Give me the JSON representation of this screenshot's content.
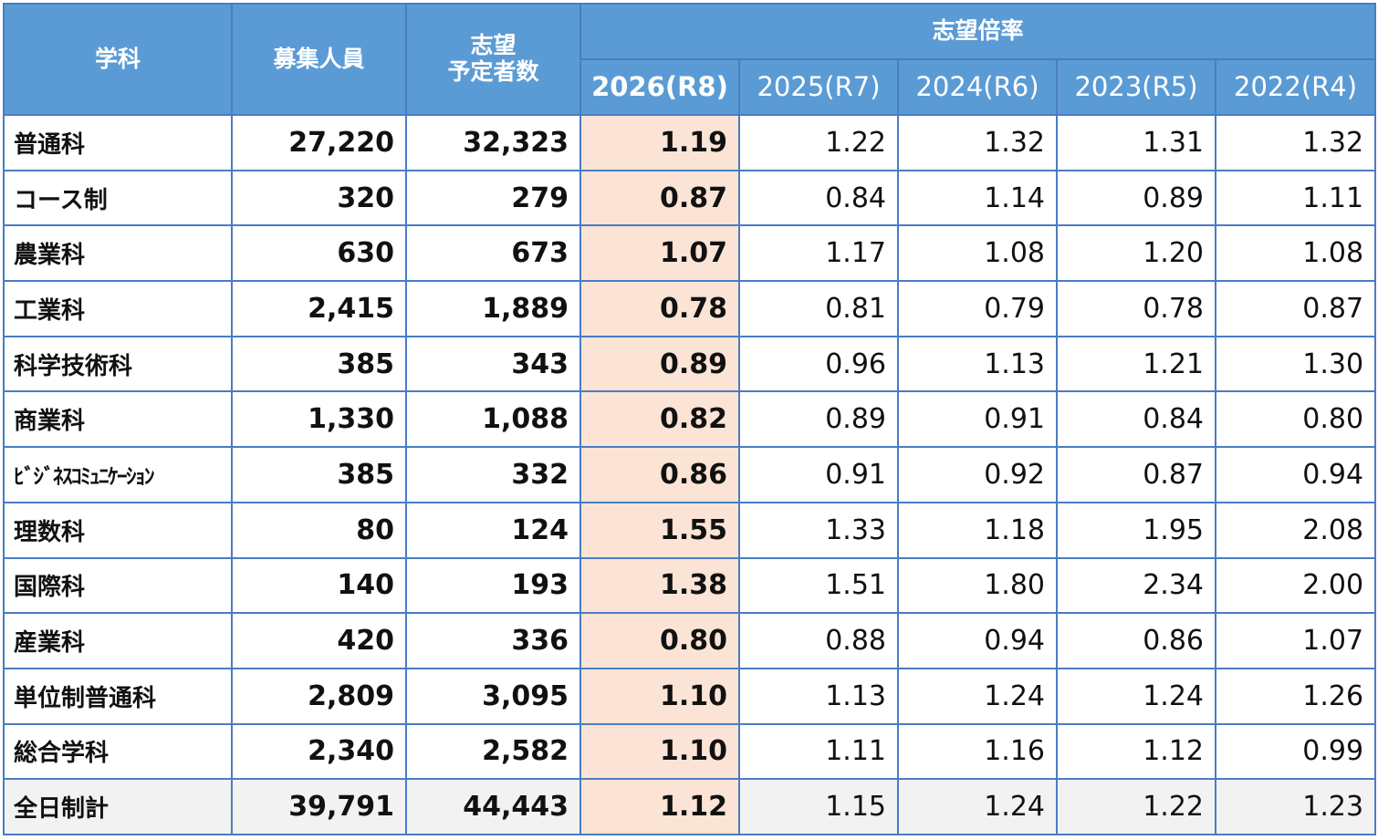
{
  "chart_data": {
    "type": "table",
    "header": {
      "dept": "学科",
      "capacity": "募集人員",
      "applicants": "志望\n予定者数",
      "ratio": "志望倍率",
      "years": [
        "2026(R8)",
        "2025(R7)",
        "2024(R6)",
        "2023(R5)",
        "2022(R4)"
      ]
    },
    "rows": [
      {
        "dept": "普通科",
        "capacity": "27,220",
        "applicants": "32,323",
        "ratios": [
          "1.19",
          "1.22",
          "1.32",
          "1.31",
          "1.32"
        ]
      },
      {
        "dept": "コース制",
        "capacity": "320",
        "applicants": "279",
        "ratios": [
          "0.87",
          "0.84",
          "1.14",
          "0.89",
          "1.11"
        ]
      },
      {
        "dept": "農業科",
        "capacity": "630",
        "applicants": "673",
        "ratios": [
          "1.07",
          "1.17",
          "1.08",
          "1.20",
          "1.08"
        ]
      },
      {
        "dept": "工業科",
        "capacity": "2,415",
        "applicants": "1,889",
        "ratios": [
          "0.78",
          "0.81",
          "0.79",
          "0.78",
          "0.87"
        ]
      },
      {
        "dept": "科学技術科",
        "capacity": "385",
        "applicants": "343",
        "ratios": [
          "0.89",
          "0.96",
          "1.13",
          "1.21",
          "1.30"
        ]
      },
      {
        "dept": "商業科",
        "capacity": "1,330",
        "applicants": "1,088",
        "ratios": [
          "0.82",
          "0.89",
          "0.91",
          "0.84",
          "0.80"
        ]
      },
      {
        "dept": "ﾋﾞｼﾞﾈｽｺﾐｭﾆｹｰｼｮﾝ",
        "capacity": "385",
        "applicants": "332",
        "ratios": [
          "0.86",
          "0.91",
          "0.92",
          "0.87",
          "0.94"
        ]
      },
      {
        "dept": "理数科",
        "capacity": "80",
        "applicants": "124",
        "ratios": [
          "1.55",
          "1.33",
          "1.18",
          "1.95",
          "2.08"
        ]
      },
      {
        "dept": "国際科",
        "capacity": "140",
        "applicants": "193",
        "ratios": [
          "1.38",
          "1.51",
          "1.80",
          "2.34",
          "2.00"
        ]
      },
      {
        "dept": "産業科",
        "capacity": "420",
        "applicants": "336",
        "ratios": [
          "0.80",
          "0.88",
          "0.94",
          "0.86",
          "1.07"
        ]
      },
      {
        "dept": "単位制普通科",
        "capacity": "2,809",
        "applicants": "3,095",
        "ratios": [
          "1.10",
          "1.13",
          "1.24",
          "1.24",
          "1.26"
        ]
      },
      {
        "dept": "総合学科",
        "capacity": "2,340",
        "applicants": "2,582",
        "ratios": [
          "1.10",
          "1.11",
          "1.16",
          "1.12",
          "0.99"
        ]
      }
    ],
    "total": {
      "dept": "全日制計",
      "capacity": "39,791",
      "applicants": "44,443",
      "ratios": [
        "1.12",
        "1.15",
        "1.24",
        "1.22",
        "1.23"
      ]
    },
    "colors": {
      "header_bg": "#5b9bd5",
      "highlight_bg": "#fbe4d5",
      "total_bg": "#f2f2f2",
      "border": "#4a7cc4"
    }
  }
}
